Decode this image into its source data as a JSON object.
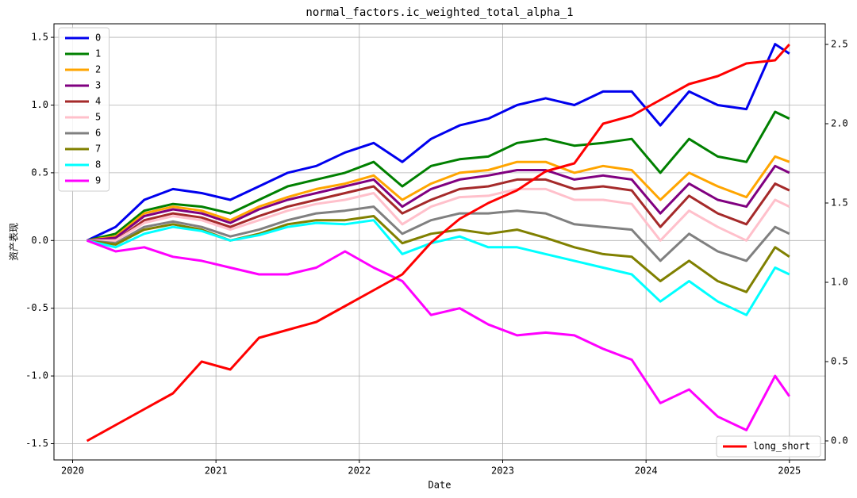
{
  "chart_data": {
    "type": "line",
    "title": "normal_factors.ic_weighted_total_alpha_1",
    "x_label": "Date",
    "y_label": "资产表现",
    "x": [
      2020.1,
      2020.3,
      2020.5,
      2020.7,
      2020.9,
      2021.1,
      2021.3,
      2021.5,
      2021.7,
      2021.9,
      2022.1,
      2022.3,
      2022.5,
      2022.7,
      2022.9,
      2023.1,
      2023.3,
      2023.5,
      2023.7,
      2023.9,
      2024.1,
      2024.3,
      2024.5,
      2024.7,
      2024.9,
      2025.0
    ],
    "xlim": [
      2019.87,
      2025.25
    ],
    "xticks": [
      2020,
      2021,
      2022,
      2023,
      2024,
      2025
    ],
    "ylim": [
      -1.62,
      1.6
    ],
    "yticks": [
      {
        "value": -1.5,
        "label": "-1.5"
      },
      {
        "value": -1.0,
        "label": "-1.0"
      },
      {
        "value": -0.5,
        "label": "-0.5"
      },
      {
        "value": 0,
        "label": "0.0"
      },
      {
        "value": 0.5,
        "label": "0.5"
      },
      {
        "value": 1.0,
        "label": "1.0"
      },
      {
        "value": 1.5,
        "label": "1.5"
      }
    ],
    "y2lim": [
      -0.12,
      2.63
    ],
    "y2ticks": [
      {
        "value": 0,
        "label": "0.0"
      },
      {
        "value": 0.5,
        "label": "0.5"
      },
      {
        "value": 1.0,
        "label": "1.0"
      },
      {
        "value": 1.5,
        "label": "1.5"
      },
      {
        "value": 2.0,
        "label": "2.0"
      },
      {
        "value": 2.5,
        "label": "2.5"
      }
    ],
    "grid": true,
    "legend": "upper left",
    "legend2": "lower right",
    "series": [
      {
        "name": "0",
        "color": "#0000ee",
        "values": [
          0,
          0.1,
          0.3,
          0.38,
          0.35,
          0.3,
          0.4,
          0.5,
          0.55,
          0.65,
          0.72,
          0.58,
          0.75,
          0.85,
          0.9,
          1.0,
          1.05,
          1.0,
          1.1,
          1.1,
          0.85,
          1.1,
          1.0,
          0.97,
          1.45,
          1.38
        ]
      },
      {
        "name": "1",
        "color": "#008000",
        "values": [
          0,
          0.05,
          0.22,
          0.27,
          0.25,
          0.2,
          0.3,
          0.4,
          0.45,
          0.5,
          0.58,
          0.4,
          0.55,
          0.6,
          0.62,
          0.72,
          0.75,
          0.7,
          0.72,
          0.75,
          0.5,
          0.75,
          0.62,
          0.58,
          0.95,
          0.9
        ]
      },
      {
        "name": "2",
        "color": "#ffa500",
        "values": [
          0,
          0.03,
          0.2,
          0.25,
          0.22,
          0.15,
          0.25,
          0.32,
          0.38,
          0.42,
          0.48,
          0.3,
          0.42,
          0.5,
          0.52,
          0.58,
          0.58,
          0.5,
          0.55,
          0.52,
          0.3,
          0.5,
          0.4,
          0.32,
          0.62,
          0.58
        ]
      },
      {
        "name": "3",
        "color": "#800080",
        "values": [
          0,
          0.02,
          0.18,
          0.23,
          0.2,
          0.13,
          0.23,
          0.3,
          0.35,
          0.4,
          0.45,
          0.25,
          0.38,
          0.45,
          0.48,
          0.52,
          0.52,
          0.45,
          0.48,
          0.45,
          0.2,
          0.42,
          0.3,
          0.25,
          0.55,
          0.5
        ]
      },
      {
        "name": "4",
        "color": "#a52a2a",
        "values": [
          0,
          0,
          0.15,
          0.2,
          0.17,
          0.1,
          0.18,
          0.25,
          0.3,
          0.35,
          0.4,
          0.2,
          0.3,
          0.38,
          0.4,
          0.45,
          0.45,
          0.38,
          0.4,
          0.37,
          0.1,
          0.33,
          0.2,
          0.12,
          0.42,
          0.37
        ]
      },
      {
        "name": "5",
        "color": "#ffc0cb",
        "values": [
          0,
          0,
          0.13,
          0.18,
          0.15,
          0.08,
          0.15,
          0.22,
          0.27,
          0.3,
          0.35,
          0.12,
          0.25,
          0.32,
          0.33,
          0.38,
          0.38,
          0.3,
          0.3,
          0.27,
          0,
          0.22,
          0.1,
          0,
          0.3,
          0.25
        ]
      },
      {
        "name": "6",
        "color": "#808080",
        "values": [
          0,
          -0.02,
          0.1,
          0.14,
          0.1,
          0.03,
          0.08,
          0.15,
          0.2,
          0.22,
          0.25,
          0.05,
          0.15,
          0.2,
          0.2,
          0.22,
          0.2,
          0.12,
          0.1,
          0.08,
          -0.15,
          0.05,
          -0.08,
          -0.15,
          0.1,
          0.05
        ]
      },
      {
        "name": "7",
        "color": "#808000",
        "values": [
          0,
          -0.03,
          0.08,
          0.12,
          0.08,
          0,
          0.05,
          0.12,
          0.15,
          0.15,
          0.18,
          -0.02,
          0.05,
          0.08,
          0.05,
          0.08,
          0.02,
          -0.05,
          -0.1,
          -0.12,
          -0.3,
          -0.15,
          -0.3,
          -0.38,
          -0.05,
          -0.12
        ]
      },
      {
        "name": "8",
        "color": "#00ffff",
        "values": [
          0,
          -0.05,
          0.05,
          0.1,
          0.07,
          0,
          0.04,
          0.1,
          0.13,
          0.12,
          0.15,
          -0.1,
          -0.02,
          0.03,
          -0.05,
          -0.05,
          -0.1,
          -0.15,
          -0.2,
          -0.25,
          -0.45,
          -0.3,
          -0.45,
          -0.55,
          -0.2,
          -0.25
        ]
      },
      {
        "name": "9",
        "color": "#ff00ff",
        "values": [
          0,
          -0.08,
          -0.05,
          -0.12,
          -0.15,
          -0.2,
          -0.25,
          -0.25,
          -0.2,
          -0.08,
          -0.2,
          -0.3,
          -0.55,
          -0.5,
          -0.62,
          -0.7,
          -0.68,
          -0.7,
          -0.8,
          -0.88,
          -1.2,
          -1.1,
          -1.3,
          -1.4,
          -1.0,
          -1.15
        ]
      },
      {
        "name": "long_short",
        "color": "#ff0000",
        "axis": "y2",
        "values": [
          0,
          0.1,
          0.2,
          0.3,
          0.5,
          0.45,
          0.65,
          0.7,
          0.75,
          0.85,
          0.95,
          1.05,
          1.25,
          1.4,
          1.5,
          1.58,
          1.7,
          1.75,
          2.0,
          2.05,
          2.15,
          2.25,
          2.3,
          2.38,
          2.4,
          2.5
        ]
      }
    ]
  }
}
